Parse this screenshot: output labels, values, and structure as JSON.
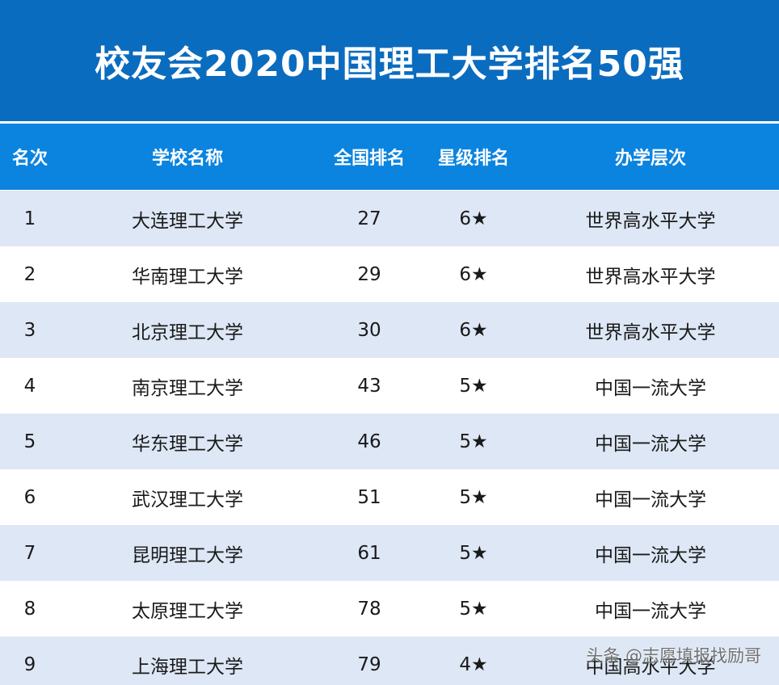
{
  "header": {
    "title": "校友会2020中国理工大学排名50强"
  },
  "table": {
    "columns": [
      "名次",
      "学校名称",
      "全国排名",
      "星级排名",
      "办学层次"
    ],
    "rows": [
      [
        1,
        "大连理工大学",
        27,
        "6★",
        "世界高水平大学"
      ],
      [
        2,
        "华南理工大学",
        29,
        "6★",
        "世界高水平大学"
      ],
      [
        3,
        "北京理工大学",
        30,
        "6★",
        "世界高水平大学"
      ],
      [
        4,
        "南京理工大学",
        43,
        "5★",
        "中国一流大学"
      ],
      [
        5,
        "华东理工大学",
        46,
        "5★",
        "中国一流大学"
      ],
      [
        6,
        "武汉理工大学",
        51,
        "5★",
        "中国一流大学"
      ],
      [
        7,
        "昆明理工大学",
        61,
        "5★",
        "中国一流大学"
      ],
      [
        8,
        "太原理工大学",
        78,
        "5★",
        "中国一流大学"
      ],
      [
        9,
        "上海理工大学",
        79,
        "4★",
        "中国高水平大学"
      ]
    ]
  },
  "watermark": "头条 @志愿填报找励哥"
}
